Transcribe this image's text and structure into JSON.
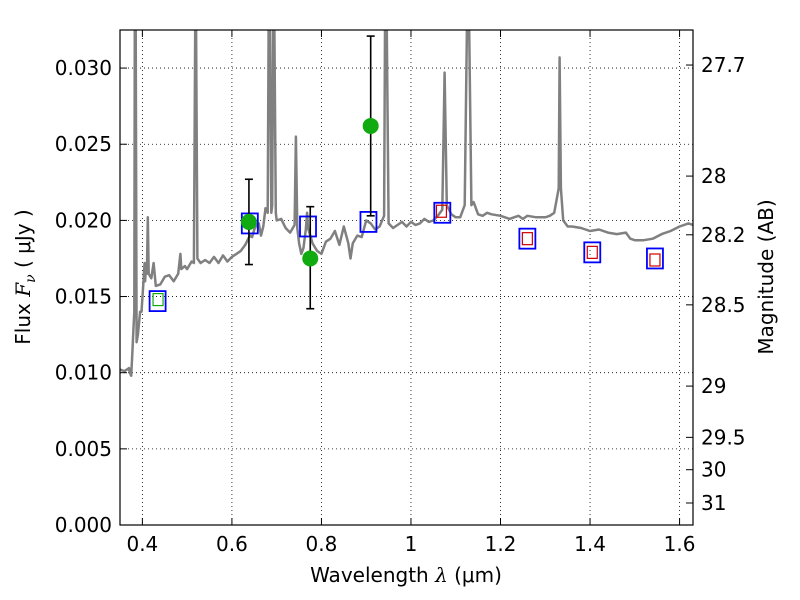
{
  "chart_data": {
    "type": "scatter",
    "xlabel": "Wavelength  λ (μm)",
    "ylabel": "Flux  F_ν  ( μJy )",
    "ylabel_parts": {
      "pre": "Flux  ",
      "symbol": "F",
      "subscript": "ν",
      "post": "  ( μJy )"
    },
    "xlabel_parts": {
      "pre": "Wavelength  ",
      "symbol": "λ",
      "post": " (μm)"
    },
    "y2label": "Magnitude (AB)",
    "xlim": [
      0.35,
      1.63
    ],
    "ylim": [
      0.0,
      0.0325
    ],
    "grid": true,
    "x_ticks": [
      0.4,
      0.6,
      0.8,
      1.0,
      1.2,
      1.4,
      1.6
    ],
    "x_tick_labels": [
      "0.4",
      "0.6",
      "0.8",
      "1",
      "1.2",
      "1.4",
      "1.6"
    ],
    "y_ticks": [
      0.0,
      0.005,
      0.01,
      0.015,
      0.02,
      0.025,
      0.03
    ],
    "y_tick_labels": [
      "0.000",
      "0.005",
      "0.010",
      "0.015",
      "0.020",
      "0.025",
      "0.030"
    ],
    "y2_ticks": [
      {
        "label": "27.7",
        "mag": 27.7
      },
      {
        "label": "28",
        "mag": 28.0
      },
      {
        "label": "28.2",
        "mag": 28.2
      },
      {
        "label": "28.5",
        "mag": 28.5
      },
      {
        "label": "29",
        "mag": 29.0
      },
      {
        "label": "29.5",
        "mag": 29.5
      },
      {
        "label": "30",
        "mag": 30.0
      },
      {
        "label": "31",
        "mag": 31.0
      }
    ],
    "colors": {
      "spectrum": "#808080",
      "green": "#11aa11",
      "blue": "#0000ff",
      "red": "#cc0000",
      "errorbar": "#000000"
    },
    "series": [
      {
        "kind": "spectrum",
        "points": [
          [
            0.35,
            0.0102
          ],
          [
            0.36,
            0.0101
          ],
          [
            0.37,
            0.0103
          ],
          [
            0.372,
            0.01
          ],
          [
            0.375,
            0.0098
          ],
          [
            0.378,
            0.0115
          ],
          [
            0.38,
            0.0128
          ],
          [
            0.382,
            0.014
          ],
          [
            0.383,
            0.033
          ],
          [
            0.385,
            0.033
          ],
          [
            0.387,
            0.012
          ],
          [
            0.39,
            0.0125
          ],
          [
            0.395,
            0.014
          ],
          [
            0.398,
            0.014
          ],
          [
            0.402,
            0.0158
          ],
          [
            0.405,
            0.0172
          ],
          [
            0.406,
            0.016
          ],
          [
            0.408,
            0.017
          ],
          [
            0.41,
            0.0165
          ],
          [
            0.412,
            0.0202
          ],
          [
            0.414,
            0.0165
          ],
          [
            0.42,
            0.0162
          ],
          [
            0.425,
            0.0172
          ],
          [
            0.43,
            0.0157
          ],
          [
            0.44,
            0.0158
          ],
          [
            0.45,
            0.0163
          ],
          [
            0.46,
            0.0164
          ],
          [
            0.47,
            0.016
          ],
          [
            0.48,
            0.0165
          ],
          [
            0.485,
            0.0178
          ],
          [
            0.487,
            0.0168
          ],
          [
            0.495,
            0.017
          ],
          [
            0.5,
            0.0168
          ],
          [
            0.51,
            0.0173
          ],
          [
            0.515,
            0.0172
          ],
          [
            0.518,
            0.0325
          ],
          [
            0.52,
            0.0325
          ],
          [
            0.523,
            0.0175
          ],
          [
            0.53,
            0.0172
          ],
          [
            0.54,
            0.0174
          ],
          [
            0.55,
            0.0172
          ],
          [
            0.56,
            0.0176
          ],
          [
            0.57,
            0.0172
          ],
          [
            0.58,
            0.0177
          ],
          [
            0.59,
            0.0173
          ],
          [
            0.6,
            0.0176
          ],
          [
            0.61,
            0.0178
          ],
          [
            0.62,
            0.018
          ],
          [
            0.63,
            0.0184
          ],
          [
            0.64,
            0.019
          ],
          [
            0.645,
            0.0189
          ],
          [
            0.65,
            0.0194
          ],
          [
            0.655,
            0.0197
          ],
          [
            0.66,
            0.0198
          ],
          [
            0.665,
            0.019
          ],
          [
            0.67,
            0.0196
          ],
          [
            0.675,
            0.0208
          ],
          [
            0.68,
            0.0205
          ],
          [
            0.682,
            0.0325
          ],
          [
            0.685,
            0.0325
          ],
          [
            0.688,
            0.0205
          ],
          [
            0.69,
            0.021
          ],
          [
            0.692,
            0.0325
          ],
          [
            0.695,
            0.0325
          ],
          [
            0.698,
            0.0205
          ],
          [
            0.7,
            0.02
          ],
          [
            0.71,
            0.0201
          ],
          [
            0.72,
            0.0195
          ],
          [
            0.73,
            0.0192
          ],
          [
            0.74,
            0.0197
          ],
          [
            0.743,
            0.0255
          ],
          [
            0.746,
            0.0195
          ],
          [
            0.75,
            0.0185
          ],
          [
            0.755,
            0.0178
          ],
          [
            0.76,
            0.0182
          ],
          [
            0.765,
            0.0194
          ],
          [
            0.768,
            0.0205
          ],
          [
            0.77,
            0.0195
          ],
          [
            0.775,
            0.019
          ],
          [
            0.78,
            0.0185
          ],
          [
            0.79,
            0.018
          ],
          [
            0.8,
            0.0178
          ],
          [
            0.81,
            0.0186
          ],
          [
            0.82,
            0.0188
          ],
          [
            0.83,
            0.0193
          ],
          [
            0.84,
            0.0184
          ],
          [
            0.85,
            0.0196
          ],
          [
            0.86,
            0.0185
          ],
          [
            0.865,
            0.0175
          ],
          [
            0.87,
            0.0185
          ],
          [
            0.88,
            0.019
          ],
          [
            0.89,
            0.0189
          ],
          [
            0.9,
            0.02
          ],
          [
            0.91,
            0.0198
          ],
          [
            0.92,
            0.0194
          ],
          [
            0.93,
            0.0196
          ],
          [
            0.94,
            0.0203
          ],
          [
            0.942,
            0.0325
          ],
          [
            0.946,
            0.0325
          ],
          [
            0.95,
            0.0198
          ],
          [
            0.96,
            0.0195
          ],
          [
            0.97,
            0.0197
          ],
          [
            0.98,
            0.0199
          ],
          [
            0.99,
            0.0196
          ],
          [
            1.0,
            0.0199
          ],
          [
            1.01,
            0.0197
          ],
          [
            1.02,
            0.0198
          ],
          [
            1.03,
            0.0201
          ],
          [
            1.04,
            0.0199
          ],
          [
            1.05,
            0.02
          ],
          [
            1.06,
            0.0203
          ],
          [
            1.07,
            0.0207
          ],
          [
            1.075,
            0.0297
          ],
          [
            1.08,
            0.021
          ],
          [
            1.09,
            0.0204
          ],
          [
            1.1,
            0.0202
          ],
          [
            1.11,
            0.0202
          ],
          [
            1.12,
            0.021
          ],
          [
            1.125,
            0.0325
          ],
          [
            1.13,
            0.0325
          ],
          [
            1.135,
            0.021
          ],
          [
            1.14,
            0.0212
          ],
          [
            1.15,
            0.0204
          ],
          [
            1.16,
            0.0203
          ],
          [
            1.17,
            0.0205
          ],
          [
            1.18,
            0.0204
          ],
          [
            1.2,
            0.0203
          ],
          [
            1.22,
            0.0201
          ],
          [
            1.24,
            0.0203
          ],
          [
            1.25,
            0.0201
          ],
          [
            1.26,
            0.0203
          ],
          [
            1.28,
            0.0202
          ],
          [
            1.3,
            0.0202
          ],
          [
            1.31,
            0.0203
          ],
          [
            1.32,
            0.0205
          ],
          [
            1.33,
            0.0221
          ],
          [
            1.332,
            0.0307
          ],
          [
            1.335,
            0.0221
          ],
          [
            1.34,
            0.02
          ],
          [
            1.35,
            0.0196
          ],
          [
            1.36,
            0.0196
          ],
          [
            1.38,
            0.0195
          ],
          [
            1.4,
            0.0193
          ],
          [
            1.42,
            0.0194
          ],
          [
            1.44,
            0.0192
          ],
          [
            1.46,
            0.0191
          ],
          [
            1.48,
            0.0192
          ],
          [
            1.49,
            0.0188
          ],
          [
            1.5,
            0.0187
          ],
          [
            1.52,
            0.0187
          ],
          [
            1.54,
            0.0188
          ],
          [
            1.56,
            0.0191
          ],
          [
            1.58,
            0.0193
          ],
          [
            1.6,
            0.0196
          ],
          [
            1.62,
            0.0198
          ],
          [
            1.63,
            0.0197
          ]
        ]
      },
      {
        "kind": "green_points_with_errors",
        "points": [
          {
            "x": 0.435,
            "y": 0.0148,
            "err": null
          },
          {
            "x": 0.638,
            "y": 0.0199,
            "err": [
              0.0171,
              0.0227
            ]
          },
          {
            "x": 0.775,
            "y": 0.0175,
            "err": [
              0.0142,
              0.0209
            ]
          },
          {
            "x": 0.91,
            "y": 0.0262,
            "err": [
              0.0203,
              0.0321
            ]
          }
        ]
      },
      {
        "kind": "blue_squares",
        "points": [
          {
            "x": 0.434,
            "y": 0.0147
          },
          {
            "x": 0.64,
            "y": 0.0198
          },
          {
            "x": 0.77,
            "y": 0.0196
          },
          {
            "x": 0.905,
            "y": 0.0199
          },
          {
            "x": 1.07,
            "y": 0.0205
          },
          {
            "x": 1.26,
            "y": 0.0188
          },
          {
            "x": 1.405,
            "y": 0.0179
          },
          {
            "x": 1.545,
            "y": 0.0175
          }
        ]
      },
      {
        "kind": "red_squares",
        "points": [
          {
            "x": 1.068,
            "y": 0.0206
          },
          {
            "x": 1.26,
            "y": 0.0188
          },
          {
            "x": 1.405,
            "y": 0.0179
          },
          {
            "x": 1.545,
            "y": 0.0174
          }
        ]
      }
    ]
  }
}
